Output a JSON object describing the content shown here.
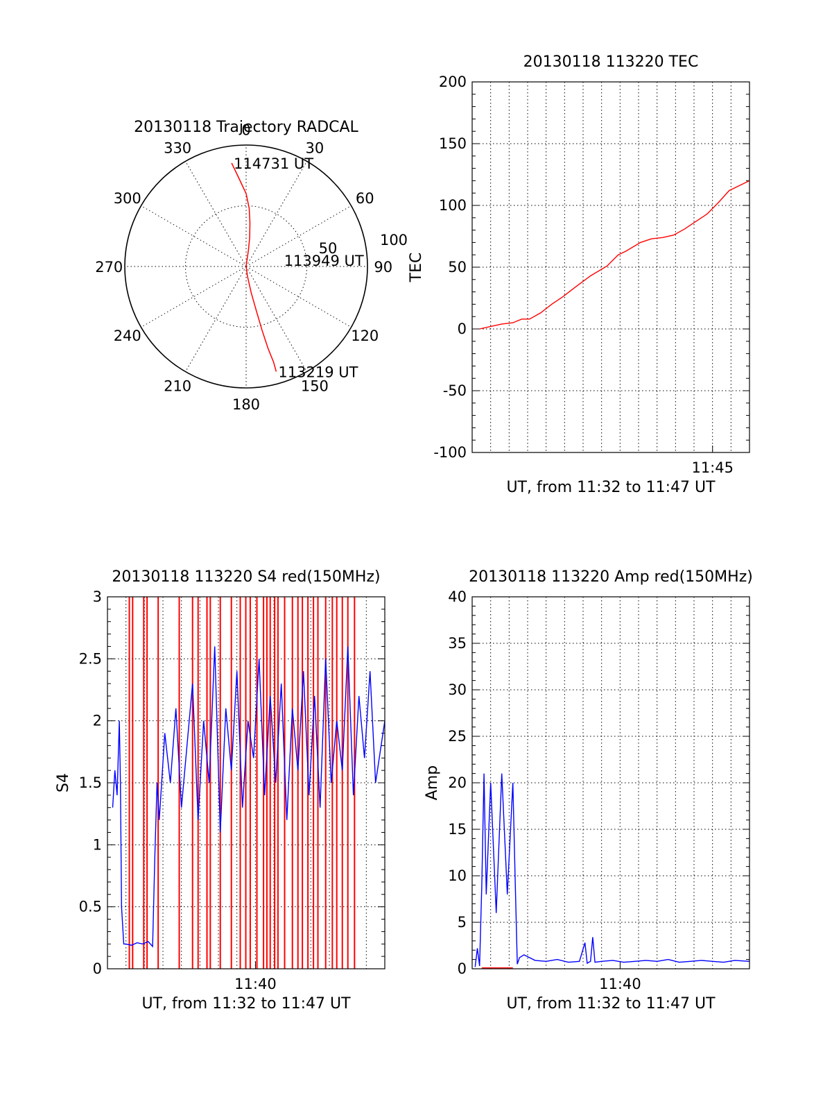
{
  "chart_data": [
    {
      "type": "polar",
      "title": "20130118 Trajectory RADCAL",
      "angle_labels": [
        "0",
        "30",
        "60",
        "90",
        "120",
        "150",
        "180",
        "210",
        "240",
        "270",
        "300",
        "330"
      ],
      "radius_labels": [
        "50",
        "100"
      ],
      "series": [
        {
          "color": "#ff0000",
          "points": [
            [
              352,
              86
            ],
            [
              355,
              74
            ],
            [
              0,
              60
            ],
            [
              3,
              48
            ],
            [
              5,
              36
            ],
            [
              7,
              24
            ],
            [
              8,
              14
            ],
            [
              8,
              5
            ],
            [
              6,
              4
            ],
            [
              0,
              0
            ],
            [
              172,
              8
            ],
            [
              169,
              22
            ],
            [
              167,
              38
            ],
            [
              166,
              54
            ],
            [
              165,
              70
            ],
            [
              164,
              82
            ],
            [
              164,
              90
            ]
          ]
        }
      ],
      "annotations": [
        {
          "text": "114731 UT",
          "az": 352,
          "r": 86
        },
        {
          "text": "113949 UT",
          "az": 80,
          "r": 30
        },
        {
          "text": "113219 UT",
          "az": 164,
          "r": 90
        }
      ]
    },
    {
      "type": "line",
      "title": "20130118 113220 TEC",
      "xlabel": "UT, from 11:32 to 11:47 UT",
      "ylabel": "TEC",
      "xlim": [
        11.5333,
        11.7833
      ],
      "ylim": [
        -100,
        200
      ],
      "yticks": [
        "-100",
        "-50",
        "0",
        "50",
        "100",
        "150",
        "200"
      ],
      "xtick_labels": [
        {
          "at": 11.75,
          "label": "11:45"
        }
      ],
      "series": [
        {
          "color": "#ff0000",
          "x": [
            11.54,
            11.55,
            11.56,
            11.57,
            11.578,
            11.585,
            11.595,
            11.605,
            11.615,
            11.625,
            11.64,
            11.655,
            11.665,
            11.672,
            11.685,
            11.695,
            11.705,
            11.715,
            11.725,
            11.735,
            11.745,
            11.755,
            11.765,
            11.7833
          ],
          "y": [
            0,
            2,
            4,
            5,
            8,
            8,
            13,
            20,
            26,
            33,
            43,
            51,
            60,
            63,
            70,
            73,
            74,
            76,
            81,
            87,
            93,
            102,
            112,
            120
          ]
        }
      ]
    },
    {
      "type": "line",
      "title": "20130118 113220 S4 red(150MHz)",
      "xlabel": "UT, from 11:32 to 11:47 UT",
      "ylabel": "S4",
      "xlim": [
        11.5333,
        11.7833
      ],
      "ylim": [
        0,
        3
      ],
      "yticks": [
        "0",
        "0.5",
        "1",
        "1.5",
        "2",
        "2.5",
        "3"
      ],
      "xtick_labels": [
        {
          "at": 11.6667,
          "label": "11:40"
        }
      ],
      "series": [
        {
          "color": "#0000ff",
          "x": [
            11.538,
            11.54,
            11.542,
            11.544,
            11.545,
            11.546,
            11.548,
            11.55,
            11.555,
            11.56,
            11.565,
            11.57,
            11.574,
            11.576,
            11.578,
            11.58,
            11.585,
            11.59,
            11.595,
            11.6,
            11.605,
            11.61,
            11.615,
            11.62,
            11.625,
            11.63,
            11.635,
            11.64,
            11.645,
            11.65,
            11.655,
            11.66,
            11.665,
            11.67,
            11.675,
            11.68,
            11.685,
            11.69,
            11.695,
            11.7,
            11.705,
            11.71,
            11.715,
            11.72,
            11.725,
            11.73,
            11.735,
            11.74,
            11.745,
            11.75,
            11.755,
            11.76,
            11.765,
            11.77,
            11.775,
            11.7833
          ],
          "y": [
            1.3,
            1.6,
            1.4,
            2.0,
            1.5,
            0.5,
            0.2,
            0.2,
            0.19,
            0.21,
            0.2,
            0.22,
            0.18,
            0.9,
            1.5,
            1.2,
            1.9,
            1.5,
            2.1,
            1.3,
            1.8,
            2.3,
            1.2,
            2.0,
            1.5,
            2.6,
            1.1,
            2.1,
            1.6,
            2.4,
            1.3,
            2.0,
            1.7,
            2.5,
            1.4,
            2.2,
            1.5,
            2.3,
            1.2,
            2.1,
            1.6,
            2.4,
            1.4,
            2.2,
            1.3,
            2.5,
            1.5,
            2.0,
            1.6,
            2.6,
            1.4,
            2.2,
            1.7,
            2.4,
            1.5,
            2.0
          ]
        }
      ],
      "vertical_marks": {
        "color": "#ff0000",
        "x": [
          11.553,
          11.556,
          11.566,
          11.569,
          11.579,
          11.598,
          11.61,
          11.615,
          11.623,
          11.626,
          11.635,
          11.645,
          11.653,
          11.658,
          11.662,
          11.668,
          11.674,
          11.677,
          11.68,
          11.684,
          11.687,
          11.693,
          11.7,
          11.705,
          11.709,
          11.714,
          11.719,
          11.723,
          11.73,
          11.736,
          11.74,
          11.745,
          11.75,
          11.756
        ]
      }
    },
    {
      "type": "line",
      "title": "20130118 113220 Amp red(150MHz)",
      "xlabel": "UT, from 11:32 to 11:47 UT",
      "ylabel": "Amp",
      "xlim": [
        11.5333,
        11.7833
      ],
      "ylim": [
        0,
        40
      ],
      "yticks": [
        "0",
        "5",
        "10",
        "15",
        "20",
        "25",
        "30",
        "35",
        "40"
      ],
      "xtick_labels": [
        {
          "at": 11.6667,
          "label": "11:40"
        }
      ],
      "series": [
        {
          "color": "#0000ff",
          "x": [
            11.536,
            11.538,
            11.54,
            11.542,
            11.544,
            11.546,
            11.55,
            11.555,
            11.56,
            11.565,
            11.57,
            11.572,
            11.574,
            11.576,
            11.58,
            11.59,
            11.6,
            11.61,
            11.62,
            11.63,
            11.635,
            11.637,
            11.64,
            11.642,
            11.644,
            11.65,
            11.66,
            11.67,
            11.68,
            11.69,
            11.7,
            11.71,
            11.72,
            11.73,
            11.74,
            11.75,
            11.76,
            11.77,
            11.7833
          ],
          "y": [
            0.2,
            2.2,
            0.3,
            9,
            21,
            8,
            20,
            6,
            21,
            8,
            20,
            10,
            0.5,
            1.2,
            1.5,
            0.9,
            0.8,
            1.0,
            0.7,
            0.8,
            2.8,
            0.6,
            0.8,
            3.4,
            0.7,
            0.8,
            0.9,
            0.7,
            0.8,
            0.9,
            0.8,
            1.0,
            0.7,
            0.8,
            0.9,
            0.8,
            0.7,
            0.9,
            0.8
          ]
        },
        {
          "color": "#ff0000",
          "x": [
            11.542,
            11.57
          ],
          "y": [
            0.1,
            0.1
          ]
        }
      ]
    }
  ]
}
